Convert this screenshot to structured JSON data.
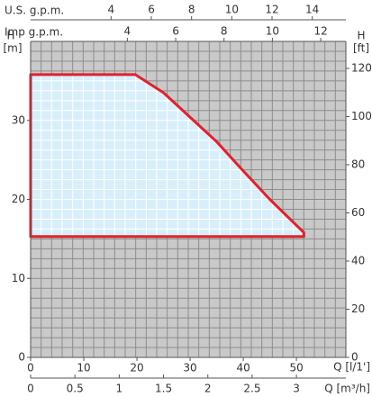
{
  "chart_data": {
    "type": "area",
    "x": [
      0,
      19.7,
      25,
      30,
      35,
      40,
      45,
      51.4,
      51.4,
      0
    ],
    "values": [
      35.8,
      35.8,
      33.5,
      30.4,
      27.3,
      23.6,
      20,
      15.8,
      15.3,
      15.3
    ],
    "color": "#e0222a",
    "fill": "#d8effb",
    "xlim": [
      0,
      59.3
    ],
    "xticks": [
      0,
      10,
      20,
      30,
      40,
      50
    ],
    "x_label": "Q [l/1']",
    "ylim": [
      0,
      40
    ],
    "yticks": [
      0,
      10,
      20,
      30
    ],
    "y_label_top": "H",
    "y_label_unit": "[m]",
    "y2lim": [
      0,
      131.2
    ],
    "y2ticks": [
      0,
      20,
      40,
      60,
      80,
      100,
      120
    ],
    "y2_label_top": "H",
    "y2_label_unit": "[ft]",
    "m3h_label": "Q [m³/h]",
    "m3h_lim": [
      0,
      3.558
    ],
    "m3h_ticks": [
      0,
      0.5,
      1,
      1.5,
      2,
      2.5,
      3
    ],
    "us_label": "U.S. g.p.m.",
    "us_lim": [
      0,
      15.67
    ],
    "us_ticks": [
      4,
      6,
      8,
      10,
      12,
      14
    ],
    "imp_label": "Imp g.p.m.",
    "imp_lim": [
      0,
      13.04
    ],
    "imp_ticks": [
      4,
      6,
      8,
      10,
      12
    ],
    "grid": true
  }
}
